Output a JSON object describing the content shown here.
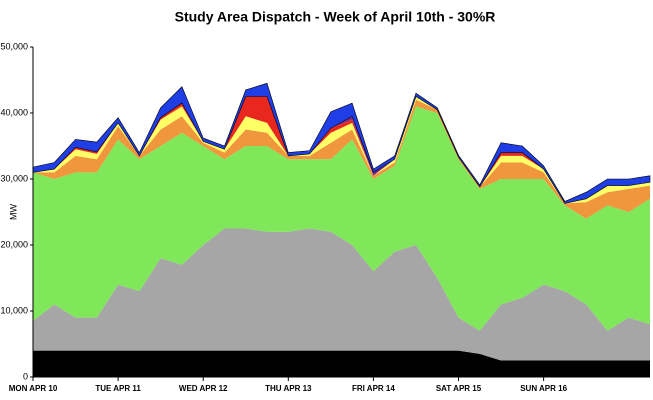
{
  "chart_data": {
    "type": "stacked_area",
    "title": "Study Area Dispatch - Week of April 10th - 30%R",
    "y_label": "MW",
    "categories": [
      "MON APR 10",
      null,
      null,
      null,
      "TUE APR 11",
      null,
      null,
      null,
      "WED APR 12",
      null,
      null,
      null,
      "THU APR 13",
      null,
      null,
      null,
      "FRI APR 14",
      null,
      null,
      null,
      "SAT APR 15",
      null,
      null,
      null,
      "SUN APR 16",
      null,
      null,
      null,
      null,
      null
    ],
    "series": [
      {
        "color": "#000000",
        "values": [
          4000,
          4000,
          4000,
          4000,
          4000,
          4000,
          4000,
          4000,
          4000,
          4000,
          4000,
          4000,
          4000,
          4000,
          4000,
          4000,
          4000,
          4000,
          4000,
          4000,
          4000,
          3500,
          2500,
          2500,
          2500,
          2500,
          2500,
          2500,
          2500,
          2500
        ]
      },
      {
        "color": "#a6a6a6",
        "values": [
          4500,
          7000,
          5000,
          5000,
          10000,
          9000,
          14000,
          13000,
          16000,
          18500,
          18500,
          18000,
          18000,
          18500,
          18000,
          16000,
          12000,
          15000,
          16000,
          11000,
          5000,
          3500,
          8500,
          9500,
          11500,
          10500,
          8500,
          4500,
          6500,
          5500
        ]
      },
      {
        "color": "#80e65a",
        "values": [
          22500,
          19000,
          22000,
          22000,
          22000,
          20000,
          17000,
          20000,
          15000,
          10500,
          12500,
          13000,
          11000,
          10500,
          11000,
          16000,
          14000,
          13000,
          21000,
          25000,
          24000,
          21500,
          19000,
          18000,
          16000,
          13000,
          13000,
          19000,
          16000,
          19000
        ]
      },
      {
        "color": "#f0963c",
        "values": [
          0,
          1000,
          2500,
          2000,
          2000,
          500,
          2500,
          2500,
          500,
          1000,
          2500,
          2000,
          500,
          500,
          2500,
          1500,
          500,
          500,
          1000,
          500,
          300,
          300,
          2500,
          2500,
          1000,
          300,
          2500,
          2000,
          3500,
          2000
        ]
      },
      {
        "color": "#ffff66",
        "values": [
          0,
          500,
          1000,
          800,
          500,
          0,
          1500,
          1500,
          200,
          500,
          2000,
          1500,
          0,
          300,
          1500,
          1000,
          0,
          500,
          500,
          0,
          0,
          0,
          1000,
          1000,
          500,
          0,
          500,
          1000,
          500,
          500
        ]
      },
      {
        "color": "#e8281e",
        "values": [
          0,
          0,
          300,
          300,
          0,
          0,
          300,
          500,
          0,
          0,
          3000,
          4000,
          0,
          0,
          700,
          500,
          0,
          0,
          0,
          0,
          0,
          0,
          500,
          500,
          0,
          0,
          0,
          0,
          0,
          0
        ]
      },
      {
        "color": "#7b2a8c",
        "values": [
          0,
          0,
          0,
          0,
          0,
          0,
          0,
          0,
          0,
          0,
          0,
          0,
          0,
          0,
          0,
          500,
          500,
          0,
          0,
          0,
          0,
          0,
          0,
          0,
          0,
          0,
          0,
          0,
          0,
          0
        ]
      },
      {
        "color": "#1f3ee6",
        "values": [
          800,
          1000,
          1200,
          1500,
          800,
          500,
          1500,
          2500,
          500,
          500,
          1000,
          2000,
          500,
          500,
          2500,
          2000,
          500,
          500,
          500,
          300,
          300,
          300,
          1500,
          1000,
          500,
          300,
          1000,
          1000,
          1000,
          1000
        ]
      }
    ],
    "ylim": [
      0,
      50000
    ],
    "yticks": [
      0,
      {
        "value": 10000,
        "label": "10,000"
      },
      {
        "value": 20000,
        "label": "20,000"
      },
      {
        "value": 30000,
        "label": "30,000"
      },
      {
        "value": 40000,
        "label": "40,000"
      },
      {
        "value": 50000,
        "label": "50,000"
      }
    ]
  }
}
